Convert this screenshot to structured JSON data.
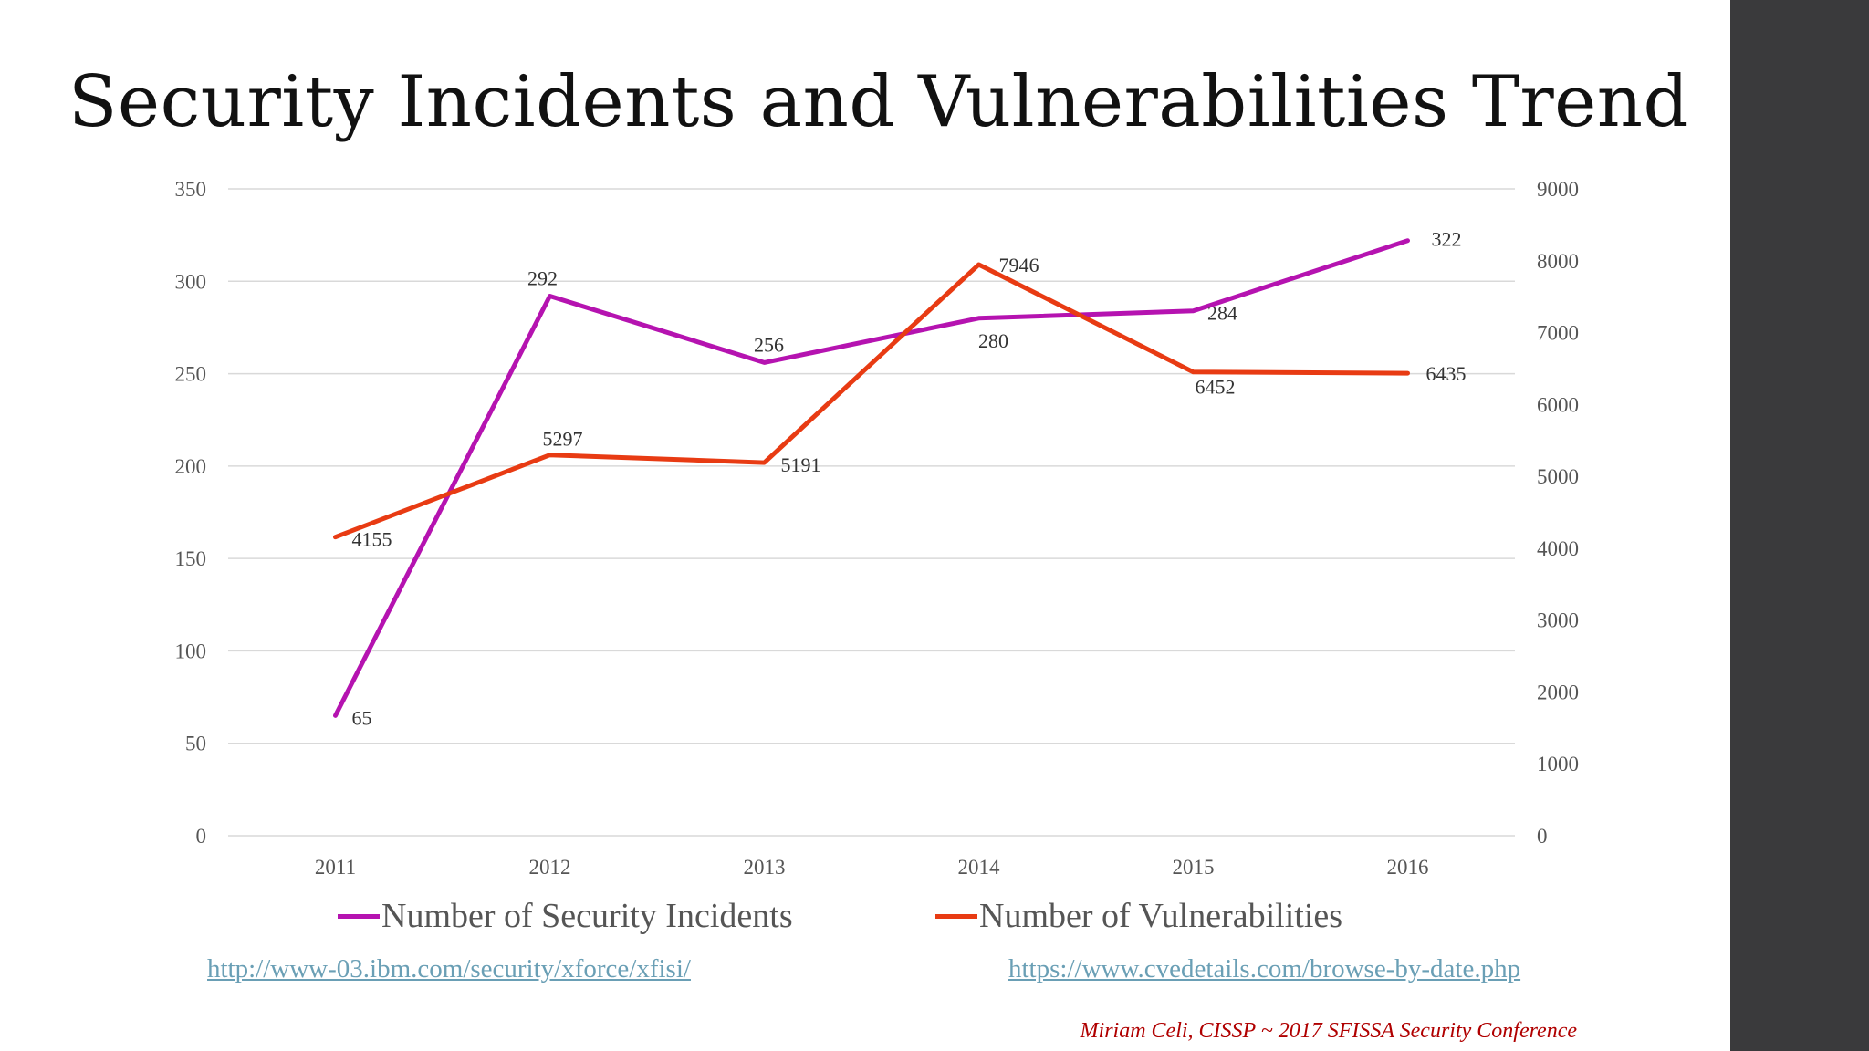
{
  "title": "Security Incidents and Vulnerabilities Trend",
  "colors": {
    "incidents": "#b513b0",
    "vulnerabilities": "#e83b13",
    "grid": "#d9d9d9",
    "side_bar": "#3a3a3c",
    "credit": "#b00000",
    "link": "#6a9fb5"
  },
  "chart_data": {
    "type": "line",
    "title": "Security Incidents and Vulnerabilities Trend",
    "categories": [
      "2011",
      "2012",
      "2013",
      "2014",
      "2015",
      "2016"
    ],
    "series": [
      {
        "name": "Number of Security Incidents",
        "axis": "left",
        "values": [
          65,
          292,
          256,
          280,
          284,
          322
        ],
        "labels": [
          "65",
          "292",
          "256",
          "280",
          "284",
          "322"
        ]
      },
      {
        "name": "Number of Vulnerabilities",
        "axis": "right",
        "values": [
          4155,
          5297,
          5191,
          7946,
          6452,
          6435
        ],
        "labels": [
          "4155",
          "5297",
          "5191",
          "7946",
          "6452",
          "6435"
        ]
      }
    ],
    "y_left": {
      "range": [
        0,
        350
      ],
      "ticks": [
        0,
        50,
        100,
        150,
        200,
        250,
        300,
        350
      ],
      "tick_labels": [
        "0",
        "50",
        "100",
        "150",
        "200",
        "250",
        "300",
        "350"
      ]
    },
    "y_right": {
      "range": [
        0,
        9000
      ],
      "ticks": [
        0,
        1000,
        2000,
        3000,
        4000,
        5000,
        6000,
        7000,
        8000,
        9000
      ],
      "tick_labels": [
        "0",
        "1000",
        "2000",
        "3000",
        "4000",
        "5000",
        "6000",
        "7000",
        "8000",
        "9000"
      ]
    },
    "grid": true,
    "legend": "bottom"
  },
  "legend": {
    "incidents_label": "Number of Security Incidents",
    "vulnerabilities_label": "Number of Vulnerabilities"
  },
  "links": {
    "ibm": "http://www-03.ibm.com/security/xforce/xfisi/",
    "cve": "https://www.cvedetails.com/browse-by-date.php"
  },
  "credit": "Miriam Celi, CISSP ~ 2017 SFISSA Security Conference"
}
